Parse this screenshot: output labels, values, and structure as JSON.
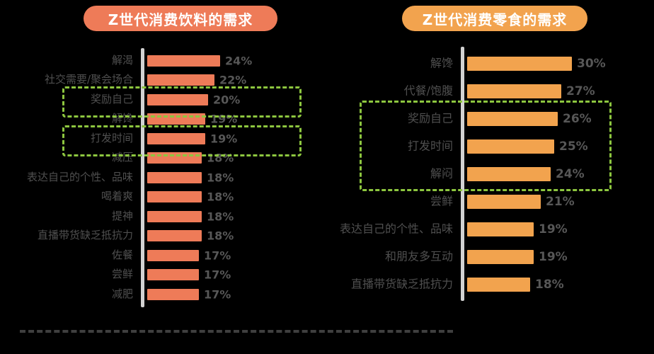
{
  "colors": {
    "background": "#000000",
    "axis_line": "#d2d2d2",
    "label_text": "#4f4f4f",
    "value_text": "#575757",
    "highlight_green": "#8dc63f",
    "beverage_accent": "#ee7b58",
    "snack_accent": "#f2a34e"
  },
  "chart_data": [
    {
      "type": "bar",
      "orientation": "horizontal",
      "title": "Z世代消费饮料的需求",
      "title_bg": "#ee7b58",
      "bar_color": "#ee7b58",
      "unit": "%",
      "xlim": [
        0,
        24
      ],
      "grid": false,
      "legend": "none",
      "categories": [
        "解渴",
        "社交需要/聚会场合",
        "奖励自己",
        "解馋",
        "打发时间",
        "减压",
        "表达自己的个性、品味",
        "喝着爽",
        "提神",
        "直播带货缺乏抵抗力",
        "佐餐",
        "尝鲜",
        "减肥"
      ],
      "values": [
        24,
        22,
        20,
        19,
        19,
        18,
        18,
        18,
        18,
        18,
        17,
        17,
        17
      ],
      "value_labels": [
        "24%",
        "22%",
        "20%",
        "19%",
        "19%",
        "18%",
        "18%",
        "18%",
        "18%",
        "18%",
        "17%",
        "17%",
        "17%"
      ],
      "highlighted_categories": [
        "奖励自己",
        "打发时间"
      ]
    },
    {
      "type": "bar",
      "orientation": "horizontal",
      "title": "Z世代消费零食的需求",
      "title_bg": "#f2a34e",
      "bar_color": "#f2a34e",
      "unit": "%",
      "xlim": [
        0,
        30
      ],
      "grid": false,
      "legend": "none",
      "categories": [
        "解馋",
        "代餐/饱腹",
        "奖励自己",
        "打发时间",
        "解闷",
        "尝鲜",
        "表达自己的个性、品味",
        "和朋友多互动",
        "直播带货缺乏抵抗力"
      ],
      "values": [
        30,
        27,
        26,
        25,
        24,
        21,
        19,
        19,
        18
      ],
      "value_labels": [
        "30%",
        "27%",
        "26%",
        "25%",
        "24%",
        "21%",
        "19%",
        "19%",
        "18%"
      ],
      "highlighted_categories": [
        "奖励自己",
        "打发时间",
        "解闷"
      ]
    }
  ]
}
